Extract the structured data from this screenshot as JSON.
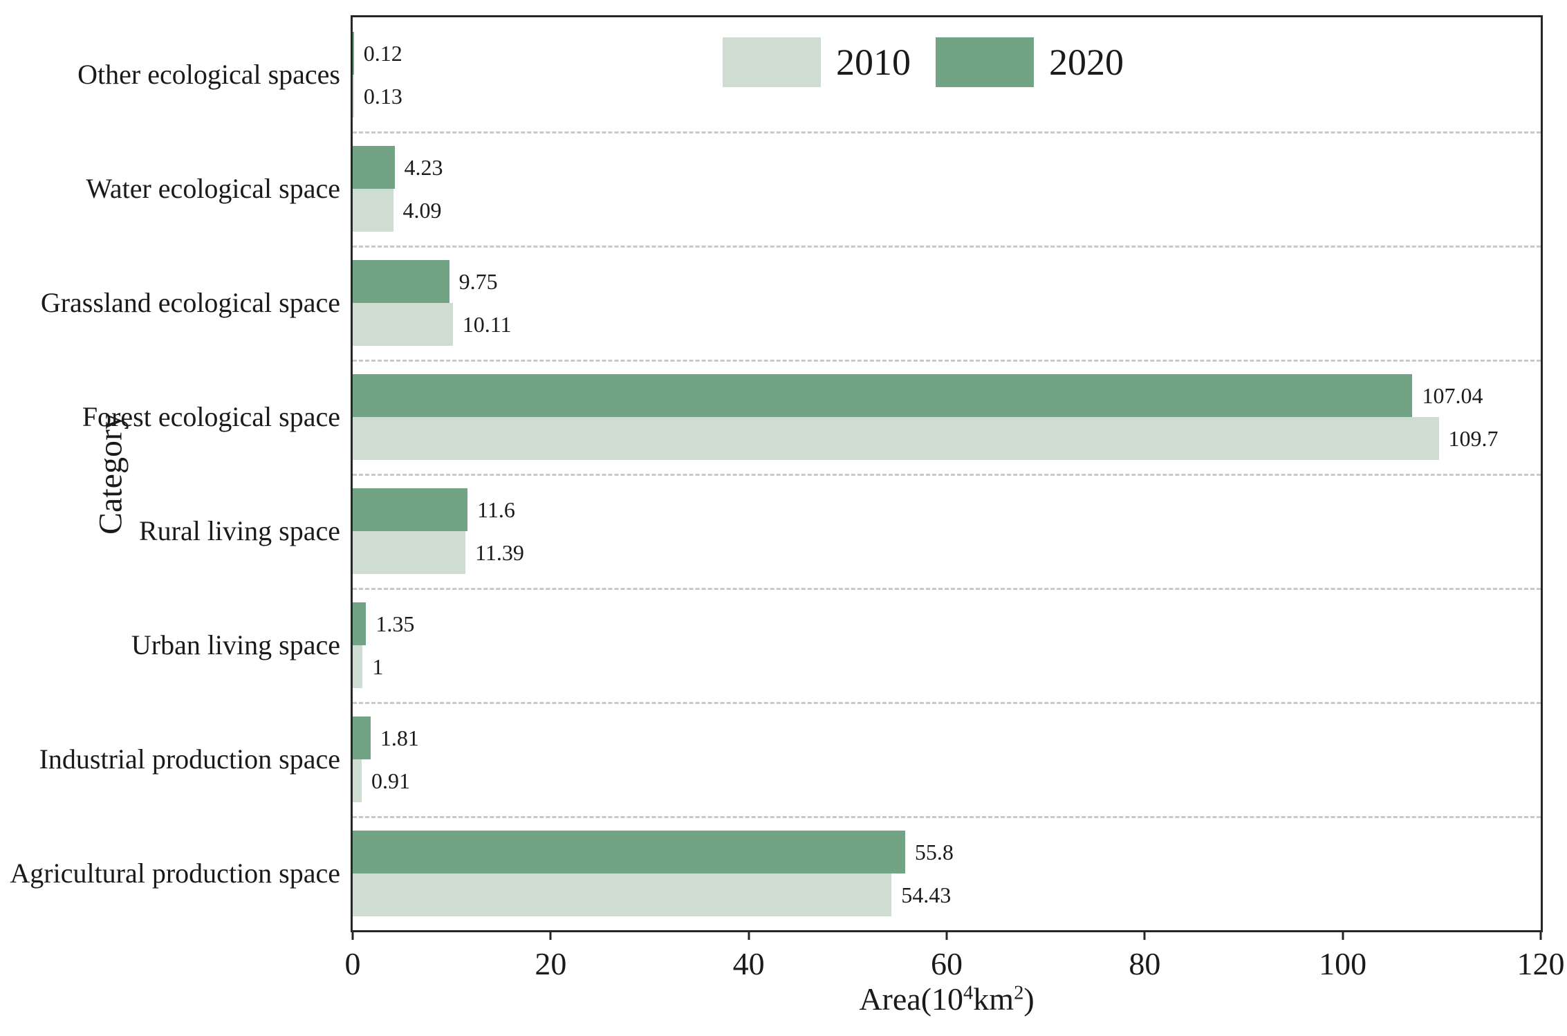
{
  "chart_data": {
    "type": "bar",
    "orientation": "horizontal",
    "title": "",
    "xlabel": "Area(10⁴km²)",
    "xlabel_parts": {
      "prefix": "Area(10",
      "sup1": "4",
      "mid": "km",
      "sup2": "2",
      "suffix": ")"
    },
    "ylabel": "Category",
    "categories": [
      "Other ecological spaces",
      "Water ecological space",
      "Grassland ecological space",
      "Forest ecological space",
      "Rural living space",
      "Urban living space",
      "Industrial production space",
      "Agricultural production space"
    ],
    "series": [
      {
        "name": "2010",
        "color": "#cedcd2",
        "values": [
          0.13,
          4.09,
          10.11,
          109.7,
          11.39,
          1,
          0.91,
          54.43
        ],
        "labels": [
          "0.13",
          "4.09",
          "10.11",
          "109.7",
          "11.39",
          "1",
          "0.91",
          "54.43"
        ]
      },
      {
        "name": "2020",
        "color": "#73a385",
        "values": [
          0.12,
          4.23,
          9.75,
          107.04,
          11.6,
          1.35,
          1.81,
          55.8
        ],
        "labels": [
          "0.12",
          "4.23",
          "9.75",
          "107.04",
          "11.6",
          "1.35",
          "1.81",
          "55.8"
        ]
      }
    ],
    "bar_order_top_to_bottom": [
      "2020",
      "2010"
    ],
    "xlim": [
      0,
      120
    ],
    "xticks": [
      "0",
      "20",
      "40",
      "60",
      "80",
      "100",
      "120"
    ],
    "legend": {
      "position": "top-inside",
      "entries": [
        "2010",
        "2020"
      ]
    },
    "grid": {
      "horizontal_separators": "dashed",
      "color": "#c9c9c9"
    },
    "colors": {
      "axis": "#262626",
      "text": "#1a1a1a",
      "background": "#ffffff"
    }
  }
}
